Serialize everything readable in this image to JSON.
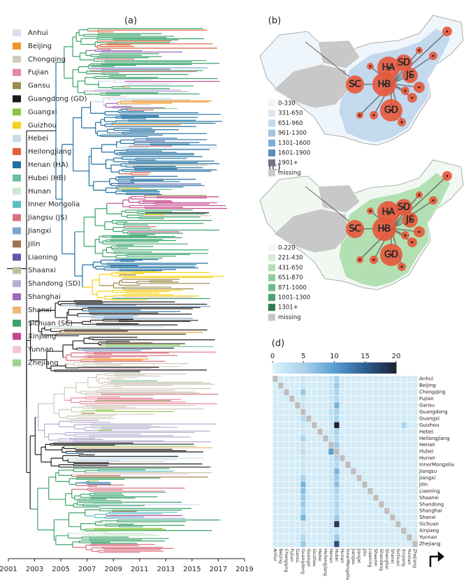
{
  "chart_data": [
    {
      "type": "tree",
      "title": "(a)",
      "series": [
        {
          "name": "Anhui",
          "color": "#dcdcf0"
        },
        {
          "name": "Beijing",
          "color": "#f0952b"
        },
        {
          "name": "Chongqing",
          "color": "#d2cbbd"
        },
        {
          "name": "Fujian",
          "color": "#e8879a"
        },
        {
          "name": "Gansu",
          "color": "#9b8a4e"
        },
        {
          "name": "Guangdong (GD)",
          "color": "#1a1a1a"
        },
        {
          "name": "Guangxi",
          "color": "#8cc63f"
        },
        {
          "name": "Guizhou",
          "color": "#f5d21a"
        },
        {
          "name": "Hebei",
          "color": "#c6dce8"
        },
        {
          "name": "Heilongjiang",
          "color": "#e0603a"
        },
        {
          "name": "Henan (HA)",
          "color": "#1f6fa0"
        },
        {
          "name": "Hubei (HB)",
          "color": "#6bbf9b"
        },
        {
          "name": "Hunan",
          "color": "#cde7cd"
        },
        {
          "name": "Inner Mongolia",
          "color": "#5bbfc4"
        },
        {
          "name": "Jiangsu (JS)",
          "color": "#d8707e"
        },
        {
          "name": "Jiangxi",
          "color": "#7ea7cf"
        },
        {
          "name": "Jilin",
          "color": "#a0724b"
        },
        {
          "name": "Liaoning",
          "color": "#5a5aa8"
        },
        {
          "name": "Shaanxi",
          "color": "#c2bfa0"
        },
        {
          "name": "Shandong (SD)",
          "color": "#b7aed1"
        },
        {
          "name": "Shanghai",
          "color": "#9c6cb8"
        },
        {
          "name": "Shanxi",
          "color": "#f2b67a"
        },
        {
          "name": "Sichuan (SC)",
          "color": "#3aa36a"
        },
        {
          "name": "Xinjiang",
          "color": "#c4478b"
        },
        {
          "name": "Yunnan",
          "color": "#f2c6da"
        },
        {
          "name": "Zhejiang",
          "color": "#9fd18f"
        }
      ],
      "xlim": [
        2001,
        2019
      ],
      "xticks": [
        2001,
        2003,
        2005,
        2007,
        2009,
        2011,
        2013,
        2015,
        2017,
        2019
      ]
    },
    {
      "type": "map",
      "title": "(b)",
      "legend": [
        "0-330",
        "331-650",
        "651-960",
        "961-1300",
        "1301-1600",
        "1601-1900",
        "1901+",
        "missing"
      ],
      "colors": [
        "#eef5fb",
        "#dbe8f4",
        "#c3d9ee",
        "#a3c5e3",
        "#7eadd6",
        "#5a8cbd",
        "#6f7587",
        "#c8c8c8"
      ],
      "region_labels": [
        "HA",
        "SD",
        "SC",
        "HB",
        "JS",
        "GD"
      ]
    },
    {
      "type": "map",
      "title": "(c)",
      "legend": [
        "0-220",
        "221-430",
        "431-650",
        "651-870",
        "871-1000",
        "1001-1300",
        "1301+",
        "missing"
      ],
      "colors": [
        "#f1f8f1",
        "#d4eed4",
        "#b3e0b3",
        "#8ccf9e",
        "#6abd88",
        "#4aa270",
        "#2f7a4e",
        "#c8c8c8"
      ],
      "region_labels": [
        "HA",
        "SD",
        "SC",
        "HB",
        "JS",
        "GD"
      ]
    },
    {
      "type": "heatmap",
      "title": "(d)",
      "clim": [
        0,
        20
      ],
      "cticks": [
        0,
        5,
        10,
        15,
        20
      ],
      "rows": [
        "Anhui",
        "Beijing",
        "Chongqing",
        "Fujian",
        "Gansu",
        "Guangdong",
        "Guangxi",
        "Guizhou",
        "Hebei",
        "Heilongjiang",
        "Henan",
        "Hubei",
        "Hunan",
        "InnerMongolia",
        "Jiangsu",
        "Jiangxi",
        "Jilin",
        "Liaoning",
        "Shaanxi",
        "Shandong",
        "Shanghai",
        "Shanxi",
        "Sichuan",
        "Xinjiang",
        "Yunnan",
        "Zhejiang"
      ],
      "columns": [
        "Anhui",
        "Beijing",
        "Chongqing",
        "Fujian",
        "Gansu",
        "Guangdong",
        "Guangxi",
        "Guizhou",
        "Hebei",
        "Heilongjiang",
        "Henan",
        "Hubei",
        "Hunan",
        "InnerMongolia",
        "Jiangsu",
        "Jiangxi",
        "Jilin",
        "Liaoning",
        "Shaanxi",
        "Shandong",
        "Shanghai",
        "Shanxi",
        "Sichuan",
        "Xinjiang",
        "Yunnan",
        "Zhejiang"
      ],
      "values": [
        [
          null,
          1,
          1,
          1,
          1,
          2,
          1,
          1,
          1,
          1,
          2,
          5,
          1,
          1,
          1,
          1,
          1,
          1,
          1,
          1,
          1,
          1,
          1,
          1,
          1,
          1
        ],
        [
          1,
          null,
          1,
          1,
          1,
          2,
          1,
          1,
          1,
          1,
          2,
          6,
          1,
          1,
          1,
          1,
          1,
          1,
          1,
          1,
          1,
          1,
          1,
          1,
          1,
          1
        ],
        [
          1,
          1,
          null,
          1,
          1,
          6,
          1,
          1,
          1,
          1,
          2,
          5,
          1,
          1,
          1,
          1,
          1,
          1,
          1,
          1,
          1,
          1,
          1,
          1,
          1,
          1
        ],
        [
          1,
          1,
          1,
          null,
          1,
          2,
          1,
          1,
          1,
          1,
          2,
          4,
          1,
          1,
          1,
          1,
          1,
          1,
          1,
          1,
          1,
          1,
          1,
          1,
          1,
          1
        ],
        [
          1,
          1,
          1,
          1,
          null,
          2,
          1,
          1,
          1,
          1,
          2,
          8,
          1,
          1,
          1,
          1,
          1,
          1,
          1,
          1,
          1,
          1,
          1,
          1,
          1,
          1
        ],
        [
          1,
          1,
          1,
          1,
          1,
          null,
          1,
          1,
          1,
          1,
          3,
          5,
          1,
          1,
          1,
          1,
          1,
          1,
          1,
          1,
          1,
          1,
          1,
          1,
          1,
          1
        ],
        [
          1,
          1,
          1,
          1,
          1,
          4,
          null,
          1,
          1,
          1,
          2,
          5,
          1,
          1,
          1,
          1,
          1,
          1,
          1,
          1,
          1,
          1,
          1,
          1,
          1,
          1
        ],
        [
          1,
          1,
          1,
          1,
          1,
          2,
          1,
          null,
          1,
          1,
          2,
          20,
          1,
          1,
          1,
          1,
          1,
          1,
          1,
          1,
          1,
          1,
          1,
          5,
          1,
          1
        ],
        [
          1,
          1,
          1,
          1,
          1,
          2,
          1,
          1,
          null,
          1,
          2,
          5,
          1,
          1,
          1,
          1,
          1,
          1,
          1,
          1,
          1,
          1,
          1,
          1,
          1,
          1
        ],
        [
          1,
          1,
          1,
          1,
          1,
          5,
          1,
          1,
          1,
          null,
          2,
          4,
          1,
          1,
          1,
          1,
          1,
          1,
          1,
          1,
          1,
          1,
          1,
          1,
          1,
          1
        ],
        [
          1,
          1,
          1,
          1,
          1,
          2,
          1,
          1,
          1,
          1,
          null,
          6,
          1,
          1,
          1,
          1,
          1,
          1,
          1,
          1,
          1,
          1,
          1,
          1,
          1,
          1
        ],
        [
          1,
          1,
          1,
          1,
          1,
          3,
          1,
          1,
          1,
          1,
          10,
          null,
          1,
          1,
          1,
          1,
          1,
          1,
          1,
          1,
          1,
          1,
          1,
          1,
          1,
          1
        ],
        [
          1,
          1,
          1,
          1,
          1,
          2,
          1,
          1,
          1,
          1,
          2,
          5,
          null,
          1,
          1,
          1,
          1,
          1,
          1,
          1,
          1,
          1,
          1,
          1,
          1,
          1
        ],
        [
          1,
          1,
          1,
          1,
          1,
          2,
          1,
          1,
          1,
          1,
          2,
          4,
          1,
          null,
          1,
          1,
          1,
          1,
          1,
          1,
          1,
          1,
          1,
          1,
          1,
          1
        ],
        [
          1,
          1,
          1,
          1,
          1,
          2,
          1,
          1,
          1,
          1,
          2,
          8,
          1,
          1,
          null,
          1,
          1,
          1,
          1,
          1,
          1,
          1,
          1,
          1,
          1,
          1
        ],
        [
          1,
          1,
          1,
          1,
          1,
          5,
          1,
          1,
          1,
          1,
          2,
          6,
          1,
          1,
          1,
          null,
          1,
          1,
          1,
          1,
          1,
          1,
          1,
          1,
          1,
          1
        ],
        [
          1,
          1,
          1,
          1,
          1,
          8,
          1,
          1,
          1,
          1,
          2,
          7,
          1,
          1,
          1,
          1,
          null,
          1,
          1,
          1,
          1,
          1,
          1,
          1,
          1,
          1
        ],
        [
          1,
          1,
          1,
          1,
          1,
          7,
          1,
          1,
          1,
          1,
          2,
          5,
          1,
          1,
          1,
          1,
          1,
          null,
          1,
          1,
          1,
          1,
          1,
          1,
          1,
          1
        ],
        [
          1,
          1,
          1,
          1,
          1,
          6,
          1,
          1,
          1,
          1,
          2,
          4,
          1,
          1,
          1,
          1,
          1,
          1,
          null,
          1,
          1,
          1,
          1,
          1,
          1,
          1
        ],
        [
          1,
          1,
          1,
          1,
          1,
          6,
          1,
          1,
          1,
          1,
          2,
          5,
          1,
          1,
          1,
          1,
          1,
          1,
          1,
          null,
          1,
          1,
          1,
          1,
          1,
          1
        ],
        [
          1,
          1,
          1,
          1,
          1,
          5,
          1,
          1,
          1,
          1,
          2,
          4,
          1,
          1,
          1,
          1,
          1,
          1,
          1,
          1,
          null,
          1,
          1,
          1,
          1,
          1
        ],
        [
          1,
          1,
          1,
          1,
          1,
          8,
          1,
          1,
          1,
          1,
          2,
          6,
          1,
          1,
          1,
          1,
          1,
          1,
          1,
          1,
          1,
          null,
          1,
          1,
          1,
          1
        ],
        [
          1,
          1,
          1,
          1,
          1,
          2,
          1,
          1,
          1,
          1,
          2,
          18,
          1,
          1,
          1,
          1,
          1,
          1,
          1,
          1,
          1,
          1,
          null,
          1,
          1,
          1
        ],
        [
          1,
          1,
          1,
          1,
          1,
          2,
          1,
          1,
          1,
          1,
          2,
          3,
          1,
          1,
          1,
          1,
          1,
          1,
          1,
          1,
          1,
          1,
          1,
          null,
          1,
          1
        ],
        [
          1,
          1,
          1,
          1,
          1,
          4,
          1,
          1,
          1,
          1,
          2,
          6,
          1,
          1,
          1,
          1,
          1,
          1,
          1,
          1,
          1,
          1,
          1,
          1,
          null,
          1
        ],
        [
          1,
          1,
          1,
          1,
          1,
          6,
          1,
          1,
          1,
          1,
          2,
          16,
          1,
          1,
          1,
          1,
          1,
          1,
          1,
          1,
          1,
          1,
          1,
          1,
          1,
          null
        ]
      ],
      "missing_color": "#bdbdbd"
    }
  ]
}
